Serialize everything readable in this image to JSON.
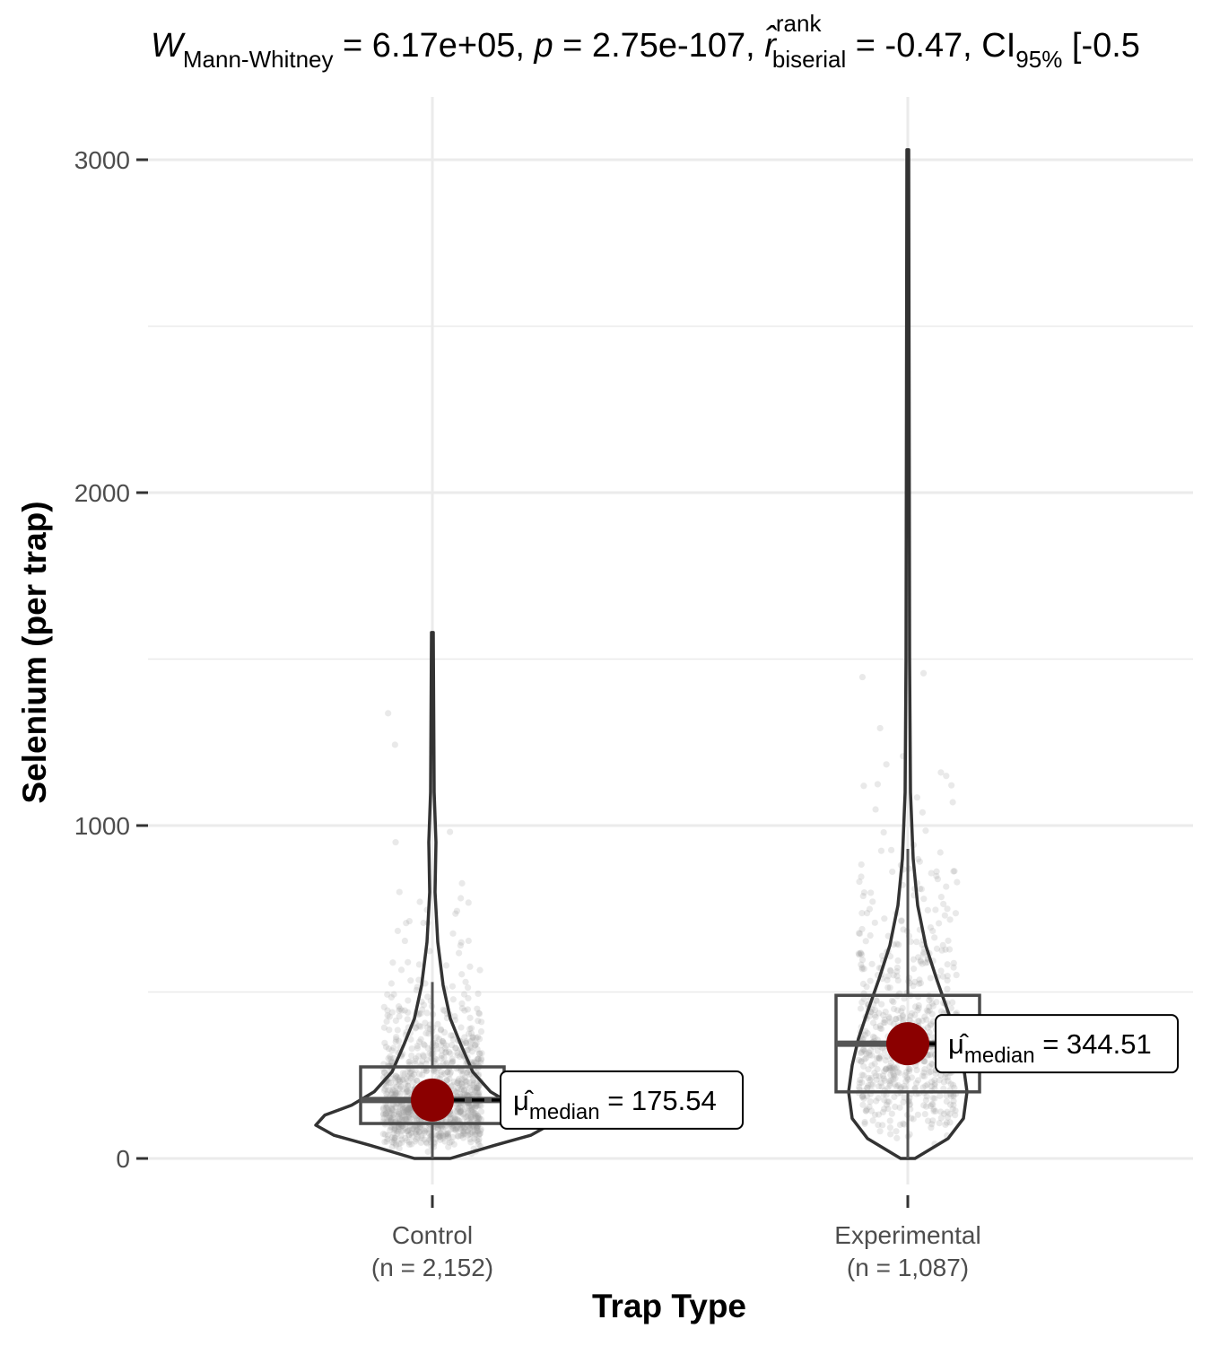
{
  "chart_data": {
    "type": "violin",
    "title": {
      "parts": [
        {
          "text": "W",
          "style": "italic"
        },
        {
          "text": "Mann-Whitney",
          "style": "sub"
        },
        {
          "text": " = 6.17e+05, "
        },
        {
          "text": "p",
          "style": "italic"
        },
        {
          "text": " = 2.75e-107, "
        },
        {
          "text": "r̂",
          "style": "italic"
        },
        {
          "text": "rank",
          "style": "sup"
        },
        {
          "text": "biserial",
          "style": "sub"
        },
        {
          "text": " = -0.47, CI"
        },
        {
          "text": "95%",
          "style": "sub"
        },
        {
          "text": " [-0.5"
        }
      ]
    },
    "xlabel": "Trap Type",
    "ylabel": "Selenium (per trap)",
    "ylim": [
      -150,
      3200
    ],
    "yticks": [
      0,
      1000,
      2000,
      3000
    ],
    "ytick_labels": [
      "0",
      "1000",
      "2000",
      "3000"
    ],
    "grid": true,
    "colors": {
      "median_point": "#8b0000",
      "outline": "#333333",
      "jitter": "#999999"
    },
    "groups": [
      {
        "category": "Control",
        "n_label": "(n = 2,152)",
        "median": 175.54,
        "box": {
          "q1": 105,
          "median": 175.54,
          "q3": 275,
          "whisker_low": 0,
          "whisker_high": 530
        },
        "max": 1580,
        "label": {
          "symbol": "μ̂",
          "sub": "median",
          "value": " = 175.54"
        }
      },
      {
        "category": "Experimental",
        "n_label": "(n = 1,087)",
        "median": 344.51,
        "box": {
          "q1": 200,
          "median": 344.51,
          "q3": 490,
          "whisker_low": 0,
          "whisker_high": 930
        },
        "max": 3030,
        "label": {
          "symbol": "μ̂",
          "sub": "median",
          "value": " = 344.51"
        }
      }
    ]
  }
}
